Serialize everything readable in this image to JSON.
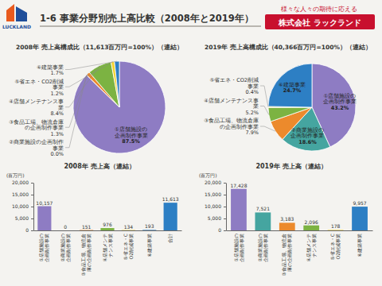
{
  "header": {
    "logo": "LUCKLAND",
    "title": "1-6 事業分野別売上高比較（2008年と2019年）",
    "tagline": "様々な人々の期待に応える",
    "company": "株式会社 ラックランド"
  },
  "chart_data": [
    {
      "type": "pie",
      "title": "2008年 売上高構成比（11,613百万円=100%）（連結）",
      "categories": [
        "①店舗施設の企画制作事業",
        "②商業施設の企画制作事業",
        "③食品工場、物流倉庫の企画制作事業",
        "④店舗メンテナンス事業",
        "⑤省エネ・CO2削減事業",
        "⑥建築事業"
      ],
      "values": [
        87.5,
        0.0,
        1.3,
        8.4,
        1.2,
        1.7
      ],
      "value_labels": [
        "87.5%",
        "0.0%",
        "1.3%",
        "8.4%",
        "1.2%",
        "1.7%"
      ],
      "colors": [
        "#8e7cc3",
        "#45a5a0",
        "#ec8a2c",
        "#7cb342",
        "#f3d230",
        "#2d7fc4"
      ],
      "data_labels": true
    },
    {
      "type": "pie",
      "title": "2019年 売上高構成比（40,366百万円=100%）（連結）",
      "categories": [
        "①店舗施設の企画制作事業",
        "②商業施設の企画制作事業",
        "③食品工場、物流倉庫の企画制作事業",
        "④店舗メンテナンス事業",
        "⑤省エネ・CO2削減事業",
        "⑥建築事業"
      ],
      "values": [
        43.2,
        18.6,
        7.9,
        5.2,
        0.4,
        24.7
      ],
      "value_labels": [
        "43.2%",
        "18.6%",
        "7.9%",
        "5.2%",
        "0.4%",
        "24.7%"
      ],
      "colors": [
        "#8e7cc3",
        "#45a5a0",
        "#ec8a2c",
        "#7cb342",
        "#f3d230",
        "#2d7fc4"
      ],
      "data_labels": true
    },
    {
      "type": "bar",
      "title": "2008年 売上高（連結）",
      "ylabel": "(百万円)",
      "categories": [
        "①店舗施設の企画制作事業",
        "②商業施設の企画制作事業",
        "③食品工場、物流倉庫の企画制作事業",
        "④店舗メンテナンス事業",
        "⑤省エネ・CO2削減事業",
        "⑥建築事業",
        "合計"
      ],
      "values": [
        10157,
        0,
        151,
        976,
        134,
        193,
        11613
      ],
      "value_labels": [
        "10,157",
        "0",
        "151",
        "976",
        "134",
        "193",
        "11,613"
      ],
      "colors": [
        "#8e7cc3",
        "#45a5a0",
        "#ec8a2c",
        "#7cb342",
        "#f3d230",
        "#2d7fc4",
        "#2d7fc4"
      ],
      "ylim": [
        0,
        20000
      ],
      "yticks": [
        0,
        {
          "value": 5000,
          "label": "5,000"
        },
        {
          "value": 10000,
          "label": "10,000"
        },
        {
          "value": 15000,
          "label": "15,000"
        },
        {
          "value": 20000,
          "label": "20,000"
        }
      ],
      "grid": false,
      "data_labels": true
    },
    {
      "type": "bar",
      "title": "2019年 売上高（連結）",
      "ylabel": "(百万円)",
      "categories": [
        "①店舗施設の企画制作事業",
        "②商業施設の企画制作事業",
        "③食品工場、物流倉庫の企画制作事業",
        "④店舗メンテナンス事業",
        "⑤省エネ・CO2削減事業",
        "⑥建築事業"
      ],
      "values": [
        17428,
        7521,
        3183,
        2096,
        178,
        9957
      ],
      "value_labels": [
        "17,428",
        "7,521",
        "3,183",
        "2,096",
        "178",
        "9,957"
      ],
      "colors": [
        "#8e7cc3",
        "#45a5a0",
        "#ec8a2c",
        "#7cb342",
        "#f3d230",
        "#2d7fc4"
      ],
      "ylim": [
        0,
        20000
      ],
      "yticks": [
        0,
        {
          "value": 5000,
          "label": "5,000"
        },
        {
          "value": 10000,
          "label": "10,000"
        },
        {
          "value": 15000,
          "label": "15,000"
        },
        {
          "value": 20000,
          "label": "20,000"
        }
      ],
      "grid": false,
      "data_labels": true
    }
  ]
}
